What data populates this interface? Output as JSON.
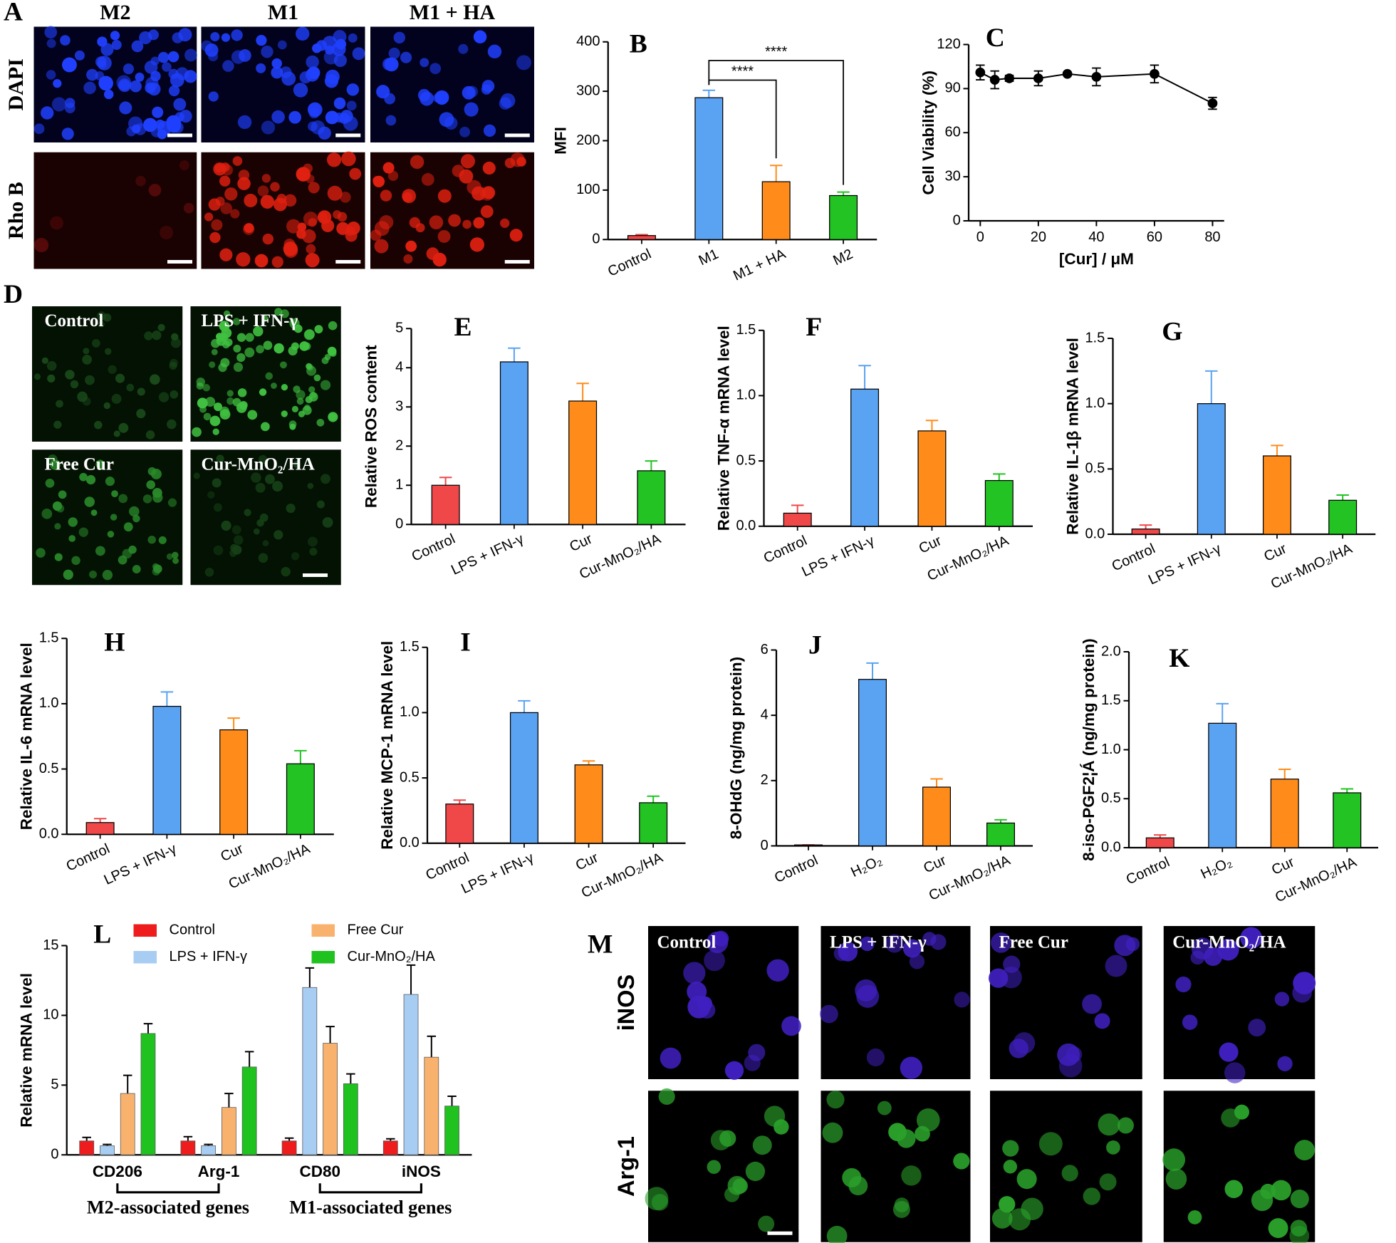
{
  "chart_data": [
    {
      "type": "bar",
      "label": "B",
      "y_label": "MFI",
      "categories": [
        "Control",
        "M1",
        "M1 + HA",
        "M2"
      ],
      "values": [
        8,
        287,
        117,
        89
      ],
      "errors": [
        2,
        15,
        33,
        7
      ],
      "colors": [
        "#f04848",
        "#5aa2f2",
        "#ff8c1a",
        "#22c322"
      ],
      "ylim": [
        0,
        400
      ],
      "yticks": [
        0,
        100,
        200,
        300,
        400
      ],
      "comparisons": [
        {
          "label": "****",
          "groups": [
            "M1",
            "M1 + HA"
          ]
        },
        {
          "label": "****",
          "groups": [
            "M1",
            "M2"
          ]
        }
      ]
    },
    {
      "type": "line",
      "label": "C",
      "y_label": "Cell Viability (%)",
      "x_label": "[Cur] / μM",
      "x": [
        0,
        5,
        10,
        20,
        30,
        40,
        60,
        80
      ],
      "y": [
        101,
        96,
        97,
        97,
        100,
        98,
        100,
        80
      ],
      "errors": [
        5,
        6,
        2,
        5,
        1,
        6,
        6,
        4
      ],
      "color": "#000000",
      "xlim": [
        -4,
        84
      ],
      "xticks": [
        0,
        20,
        40,
        60,
        80
      ],
      "ylim": [
        0,
        120
      ],
      "yticks": [
        0,
        30,
        60,
        90,
        120
      ]
    },
    {
      "type": "bar",
      "label": "E",
      "y_label": "Relative ROS content",
      "categories": [
        "Control",
        "LPS + IFN-γ",
        "Cur",
        "Cur-MnO₂/HA"
      ],
      "values": [
        1.0,
        4.15,
        3.15,
        1.37
      ],
      "errors": [
        0.2,
        0.35,
        0.45,
        0.25
      ],
      "colors": [
        "#f04848",
        "#5aa2f2",
        "#ff8c1a",
        "#22c322"
      ],
      "ylim": [
        0,
        5
      ],
      "yticks": [
        0,
        1,
        2,
        3,
        4,
        5
      ]
    },
    {
      "type": "bar",
      "label": "F",
      "y_label": "Relative TNF-α mRNA level",
      "categories": [
        "Control",
        "LPS + IFN-γ",
        "Cur",
        "Cur-MnO₂/HA"
      ],
      "values": [
        0.1,
        1.05,
        0.73,
        0.35
      ],
      "errors": [
        0.06,
        0.18,
        0.08,
        0.05
      ],
      "colors": [
        "#f04848",
        "#5aa2f2",
        "#ff8c1a",
        "#22c322"
      ],
      "ylim": [
        0,
        1.5
      ],
      "yticks": [
        {
          "value": 0,
          "label": "0.0"
        },
        0.5,
        {
          "value": 1,
          "label": "1.0"
        },
        1.5
      ]
    },
    {
      "type": "bar",
      "label": "G",
      "y_label": "Relative IL-1β mRNA level",
      "categories": [
        "Control",
        "LPS + IFN-γ",
        "Cur",
        "Cur-MnO₂/HA"
      ],
      "values": [
        0.04,
        1.0,
        0.6,
        0.26
      ],
      "errors": [
        0.03,
        0.25,
        0.08,
        0.04
      ],
      "colors": [
        "#f04848",
        "#5aa2f2",
        "#ff8c1a",
        "#22c322"
      ],
      "ylim": [
        0,
        1.5
      ],
      "yticks": [
        {
          "value": 0,
          "label": "0.0"
        },
        0.5,
        {
          "value": 1,
          "label": "1.0"
        },
        1.5
      ]
    },
    {
      "type": "bar",
      "label": "H",
      "y_label": "Relative IL-6 mRNA level",
      "categories": [
        "Control",
        "LPS + IFN-γ",
        "Cur",
        "Cur-MnO₂/HA"
      ],
      "values": [
        0.09,
        0.98,
        0.8,
        0.54
      ],
      "errors": [
        0.03,
        0.11,
        0.09,
        0.1
      ],
      "colors": [
        "#f04848",
        "#5aa2f2",
        "#ff8c1a",
        "#22c322"
      ],
      "ylim": [
        0,
        1.5
      ],
      "yticks": [
        {
          "value": 0,
          "label": "0.0"
        },
        0.5,
        {
          "value": 1,
          "label": "1.0"
        },
        1.5
      ]
    },
    {
      "type": "bar",
      "label": "I",
      "y_label": "Relative MCP-1 mRNA level",
      "categories": [
        "Control",
        "LPS + IFN-γ",
        "Cur",
        "Cur-MnO₂/HA"
      ],
      "values": [
        0.3,
        1.0,
        0.6,
        0.31
      ],
      "errors": [
        0.03,
        0.09,
        0.03,
        0.05
      ],
      "colors": [
        "#f04848",
        "#5aa2f2",
        "#ff8c1a",
        "#22c322"
      ],
      "ylim": [
        0,
        1.5
      ],
      "yticks": [
        {
          "value": 0,
          "label": "0.0"
        },
        0.5,
        {
          "value": 1,
          "label": "1.0"
        },
        1.5
      ]
    },
    {
      "type": "bar",
      "label": "J",
      "y_label": "8-OHdG (ng/mg protein)",
      "categories": [
        "Control",
        "H₂O₂",
        "Cur",
        "Cur-MnO₂/HA"
      ],
      "values": [
        0.03,
        5.1,
        1.8,
        0.7
      ],
      "errors": [
        0,
        0.5,
        0.25,
        0.1
      ],
      "colors": [
        "#f04848",
        "#5aa2f2",
        "#ff8c1a",
        "#22c322"
      ],
      "ylim": [
        0,
        6
      ],
      "yticks": [
        0,
        2,
        4,
        6
      ]
    },
    {
      "type": "bar",
      "label": "K",
      "y_label": "8-iso-PGF2¦Á (ng/mg protein)",
      "categories": [
        "Control",
        "H₂O₂",
        "Cur",
        "Cur-MnO₂/HA"
      ],
      "values": [
        0.1,
        1.27,
        0.7,
        0.56
      ],
      "errors": [
        0.03,
        0.2,
        0.1,
        0.04
      ],
      "colors": [
        "#f04848",
        "#5aa2f2",
        "#ff8c1a",
        "#22c322"
      ],
      "ylim": [
        0,
        2
      ],
      "yticks": [
        {
          "value": 0,
          "label": "0.0"
        },
        0.5,
        {
          "value": 1,
          "label": "1.0"
        },
        1.5,
        {
          "value": 2,
          "label": "2.0"
        }
      ]
    },
    {
      "type": "grouped_bar",
      "label": "L",
      "y_label": "Relative mRNA level",
      "categories": [
        "CD206",
        "Arg-1",
        "CD80",
        "iNOS"
      ],
      "series": [
        {
          "name": "Control",
          "color": "#ee1c1c",
          "values": [
            1.0,
            1.0,
            1.0,
            1.0
          ],
          "errors": [
            0.25,
            0.3,
            0.2,
            0.15
          ]
        },
        {
          "name": "LPS + IFN-γ",
          "color": "#a8cdf2",
          "values": [
            0.65,
            0.65,
            12.0,
            11.5
          ],
          "errors": [
            0.1,
            0.1,
            1.4,
            2.1
          ]
        },
        {
          "name": "Free Cur",
          "color": "#f9b26e",
          "values": [
            4.4,
            3.4,
            8.0,
            7.0
          ],
          "errors": [
            1.3,
            1.0,
            1.2,
            1.5
          ]
        },
        {
          "name": "Cur-MnO₂/HA",
          "color": "#1fc21f",
          "values": [
            8.7,
            6.3,
            5.1,
            3.5
          ],
          "errors": [
            0.7,
            1.1,
            0.7,
            0.7
          ]
        }
      ],
      "ylim": [
        0,
        15
      ],
      "yticks": [
        0,
        5,
        10,
        15
      ],
      "groups": [
        {
          "label": "M2-associated genes",
          "categories": [
            "CD206",
            "Arg-1"
          ]
        },
        {
          "label": "M1-associated genes",
          "categories": [
            "CD80",
            "iNOS"
          ]
        }
      ]
    }
  ],
  "micrographs": [
    {
      "letter": "A",
      "columns": [
        "M2",
        "M1",
        "M1 + HA"
      ],
      "rows": [
        "DAPI",
        "Rho B"
      ]
    },
    {
      "letter": "D",
      "labels": [
        "Control",
        "LPS + IFN-γ",
        "Free Cur",
        "Cur-MnO₂/HA"
      ]
    },
    {
      "letter": "M",
      "columns": [
        "Control",
        "LPS + IFN-γ",
        "Free Cur",
        "Cur-MnO₂/HA"
      ],
      "rows": [
        "iNOS",
        "Arg-1"
      ]
    }
  ]
}
